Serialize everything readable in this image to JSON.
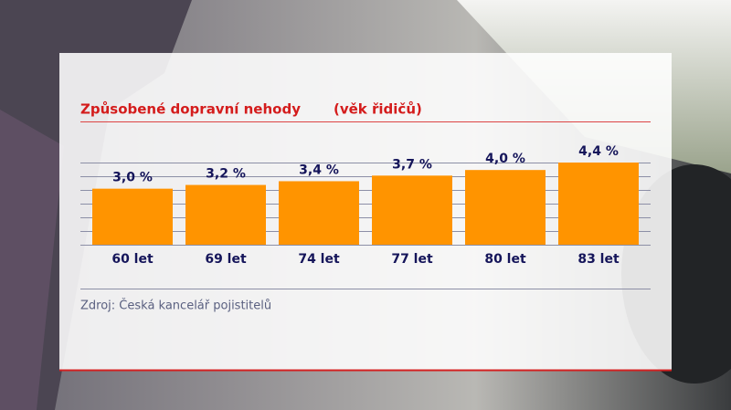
{
  "chart_data": {
    "type": "bar",
    "title": "Způsobené dopravní nehody",
    "subtitle": "(věk řidičů)",
    "source": "Zdroj: Česká kancelář pojistitelů",
    "categories": [
      "60 let",
      "69 let",
      "74 let",
      "77 let",
      "80 let",
      "83 let"
    ],
    "values": [
      3.0,
      3.2,
      3.4,
      3.7,
      4.0,
      4.4
    ],
    "value_labels": [
      "3,0 %",
      "3,2 %",
      "3,4 %",
      "3,7 %",
      "4,0 %",
      "4,4 %"
    ],
    "color": "#ff9400",
    "ylim": [
      0,
      4.4
    ]
  }
}
